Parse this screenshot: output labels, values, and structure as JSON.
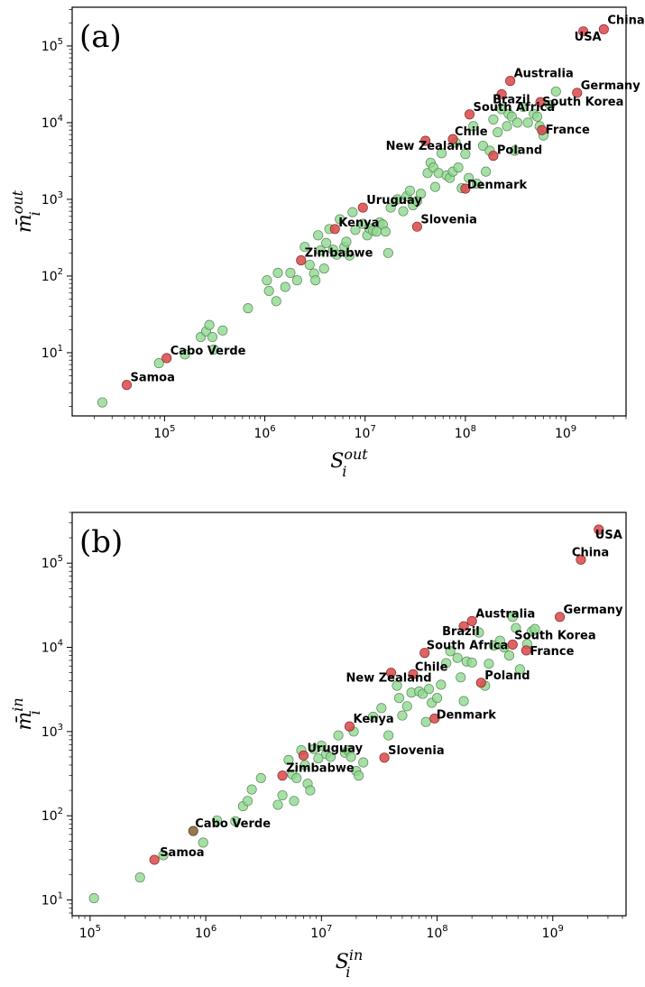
{
  "chart_data": [
    {
      "type": "scatter",
      "panel": "(a)",
      "xlabel": {
        "main": "S",
        "sub": "i",
        "sup": "out"
      },
      "ylabel": {
        "main": "m̄",
        "sub": "i",
        "sup": "out"
      },
      "xscale": "log",
      "yscale": "log",
      "xlim": [
        12000,
        4000000000
      ],
      "ylim": [
        1.5,
        320000
      ],
      "xticks": [
        {
          "value": 100000,
          "base": "10",
          "exp": "5"
        },
        {
          "value": 1000000,
          "base": "10",
          "exp": "6"
        },
        {
          "value": 10000000,
          "base": "10",
          "exp": "7"
        },
        {
          "value": 100000000,
          "base": "10",
          "exp": "8"
        },
        {
          "value": 1000000000,
          "base": "10",
          "exp": "9"
        }
      ],
      "yticks": [
        {
          "value": 10,
          "base": "10",
          "exp": "1"
        },
        {
          "value": 100,
          "base": "10",
          "exp": "2"
        },
        {
          "value": 1000,
          "base": "10",
          "exp": "3"
        },
        {
          "value": 10000,
          "base": "10",
          "exp": "4"
        },
        {
          "value": 100000,
          "base": "10",
          "exp": "5"
        }
      ],
      "highlighted": [
        {
          "name": "China",
          "x": 2400000000,
          "y": 165000,
          "color": "red",
          "dx": 4,
          "dy": -6
        },
        {
          "name": "USA",
          "x": 1500000000,
          "y": 155000,
          "color": "red",
          "dx": -10,
          "dy": 10
        },
        {
          "name": "Australia",
          "x": 280000000,
          "y": 35000,
          "color": "red",
          "dx": 4,
          "dy": -4
        },
        {
          "name": "Germany",
          "x": 1300000000,
          "y": 24500,
          "color": "red",
          "dx": 4,
          "dy": -4
        },
        {
          "name": "Brazil",
          "x": 230000000,
          "y": 23500,
          "color": "red",
          "dx": -10,
          "dy": 10
        },
        {
          "name": "South Korea",
          "x": 560000000,
          "y": 18500,
          "color": "red",
          "dx": 2,
          "dy": 4
        },
        {
          "name": "South Africa",
          "x": 110000000,
          "y": 12800,
          "color": "red",
          "dx": 4,
          "dy": -4
        },
        {
          "name": "Chile",
          "x": 75000000,
          "y": 6100,
          "color": "red",
          "dx": 2,
          "dy": -4
        },
        {
          "name": "France",
          "x": 580000000,
          "y": 8000,
          "color": "red",
          "dx": 4,
          "dy": 4
        },
        {
          "name": "New Zealand",
          "x": 40000000,
          "y": 5800,
          "color": "red",
          "dx": -44,
          "dy": 10
        },
        {
          "name": "Poland",
          "x": 190000000,
          "y": 3700,
          "color": "red",
          "dx": 4,
          "dy": -2
        },
        {
          "name": "Denmark",
          "x": 100000000,
          "y": 1380,
          "color": "red",
          "dx": 2,
          "dy": 0
        },
        {
          "name": "Uruguay",
          "x": 9500000,
          "y": 780,
          "color": "red",
          "dx": 4,
          "dy": -4
        },
        {
          "name": "Kenya",
          "x": 5000000,
          "y": 410,
          "color": "red",
          "dx": 4,
          "dy": -3
        },
        {
          "name": "Slovenia",
          "x": 33000000,
          "y": 440,
          "color": "red",
          "dx": 4,
          "dy": -4
        },
        {
          "name": "Zimbabwe",
          "x": 2300000,
          "y": 160,
          "color": "red",
          "dx": 4,
          "dy": -4
        },
        {
          "name": "Cabo Verde",
          "x": 105000,
          "y": 8.5,
          "color": "red",
          "dx": 4,
          "dy": -4
        },
        {
          "name": "Samoa",
          "x": 42000,
          "y": 3.8,
          "color": "red",
          "dx": 4,
          "dy": -4
        }
      ],
      "points": [
        [
          24000,
          2.25
        ],
        [
          88000,
          7.3
        ],
        [
          160000,
          9.5
        ],
        [
          230000,
          16
        ],
        [
          260000,
          19
        ],
        [
          280000,
          23
        ],
        [
          300000,
          16
        ],
        [
          310000,
          11
        ],
        [
          380000,
          19.5
        ],
        [
          680000,
          38
        ],
        [
          1050000,
          88
        ],
        [
          1100000,
          64
        ],
        [
          1300000,
          47
        ],
        [
          1350000,
          110
        ],
        [
          1600000,
          72
        ],
        [
          1800000,
          110
        ],
        [
          2100000,
          88
        ],
        [
          2500000,
          240
        ],
        [
          2800000,
          140
        ],
        [
          3100000,
          108
        ],
        [
          3200000,
          88
        ],
        [
          3400000,
          340
        ],
        [
          3600000,
          215
        ],
        [
          3900000,
          125
        ],
        [
          4100000,
          270
        ],
        [
          4400000,
          410
        ],
        [
          4800000,
          220
        ],
        [
          5200000,
          190
        ],
        [
          5600000,
          550
        ],
        [
          6200000,
          240
        ],
        [
          6500000,
          280
        ],
        [
          7000000,
          185
        ],
        [
          7500000,
          680
        ],
        [
          8000000,
          400
        ],
        [
          9500000,
          480
        ],
        [
          10500000,
          340
        ],
        [
          11000000,
          420
        ],
        [
          12000000,
          390
        ],
        [
          13000000,
          380
        ],
        [
          14000000,
          500
        ],
        [
          15000000,
          470
        ],
        [
          16000000,
          380
        ],
        [
          17000000,
          200
        ],
        [
          18000000,
          780
        ],
        [
          21000000,
          1000
        ],
        [
          24000000,
          700
        ],
        [
          26000000,
          1100
        ],
        [
          28000000,
          1300
        ],
        [
          30000000,
          840
        ],
        [
          33000000,
          950
        ],
        [
          36000000,
          1180
        ],
        [
          42000000,
          2200
        ],
        [
          45000000,
          3000
        ],
        [
          48000000,
          2600
        ],
        [
          50000000,
          1450
        ],
        [
          54000000,
          2200
        ],
        [
          58000000,
          4000
        ],
        [
          65000000,
          2050
        ],
        [
          70000000,
          1900
        ],
        [
          75000000,
          2300
        ],
        [
          80000000,
          5500
        ],
        [
          85000000,
          2600
        ],
        [
          92000000,
          1400
        ],
        [
          100000000,
          3900
        ],
        [
          108000000,
          1900
        ],
        [
          120000000,
          9000
        ],
        [
          130000000,
          1600
        ],
        [
          150000000,
          5000
        ],
        [
          160000000,
          2300
        ],
        [
          175000000,
          4300
        ],
        [
          190000000,
          11000
        ],
        [
          210000000,
          7500
        ],
        [
          230000000,
          15000
        ],
        [
          260000000,
          9000
        ],
        [
          270000000,
          13000
        ],
        [
          290000000,
          12000
        ],
        [
          310000000,
          4300
        ],
        [
          330000000,
          10000
        ],
        [
          380000000,
          16000
        ],
        [
          420000000,
          10000
        ],
        [
          480000000,
          13000
        ],
        [
          520000000,
          12000
        ],
        [
          550000000,
          9000
        ],
        [
          600000000,
          6800
        ],
        [
          700000000,
          17000
        ],
        [
          800000000,
          25500
        ]
      ]
    },
    {
      "type": "scatter",
      "panel": "(b)",
      "xlabel": {
        "main": "S",
        "sub": "i",
        "sup": "in"
      },
      "ylabel": {
        "main": "m̄",
        "sub": "i",
        "sup": "in"
      },
      "xscale": "log",
      "yscale": "log",
      "xlim": [
        70000,
        4300000000
      ],
      "ylim": [
        6.5,
        400000
      ],
      "xticks": [
        {
          "value": 100000,
          "base": "10",
          "exp": "5"
        },
        {
          "value": 1000000,
          "base": "10",
          "exp": "6"
        },
        {
          "value": 10000000,
          "base": "10",
          "exp": "7"
        },
        {
          "value": 100000000,
          "base": "10",
          "exp": "8"
        },
        {
          "value": 1000000000,
          "base": "10",
          "exp": "9"
        }
      ],
      "yticks": [
        {
          "value": 10,
          "base": "10",
          "exp": "1"
        },
        {
          "value": 100,
          "base": "10",
          "exp": "2"
        },
        {
          "value": 1000,
          "base": "10",
          "exp": "3"
        },
        {
          "value": 10000,
          "base": "10",
          "exp": "4"
        },
        {
          "value": 100000,
          "base": "10",
          "exp": "5"
        }
      ],
      "highlighted": [
        {
          "name": "USA",
          "x": 2500000000,
          "y": 250000,
          "color": "red",
          "dx": -4,
          "dy": 10
        },
        {
          "name": "China",
          "x": 1750000000,
          "y": 110000,
          "color": "red",
          "dx": -10,
          "dy": -4
        },
        {
          "name": "Germany",
          "x": 1150000000,
          "y": 23000,
          "color": "red",
          "dx": 4,
          "dy": -4
        },
        {
          "name": "Australia",
          "x": 200000000,
          "y": 20500,
          "color": "red",
          "dx": 4,
          "dy": -4
        },
        {
          "name": "Brazil",
          "x": 170000000,
          "y": 17800,
          "color": "red",
          "dx": -24,
          "dy": 10
        },
        {
          "name": "South Korea",
          "x": 450000000,
          "y": 10800,
          "color": "red",
          "dx": 2,
          "dy": -6
        },
        {
          "name": "France",
          "x": 590000000,
          "y": 9200,
          "color": "red",
          "dx": 4,
          "dy": 5
        },
        {
          "name": "South Africa",
          "x": 78000000,
          "y": 8600,
          "color": "red",
          "dx": 2,
          "dy": -4
        },
        {
          "name": "Chile",
          "x": 62000000,
          "y": 4800,
          "color": "red",
          "dx": 2,
          "dy": -4
        },
        {
          "name": "New Zealand",
          "x": 40000000,
          "y": 5000,
          "color": "red",
          "dx": -50,
          "dy": 10
        },
        {
          "name": "Poland",
          "x": 240000000,
          "y": 3800,
          "color": "red",
          "dx": 4,
          "dy": -4
        },
        {
          "name": "Denmark",
          "x": 95000000,
          "y": 1430,
          "color": "red",
          "dx": 2,
          "dy": 0
        },
        {
          "name": "Kenya",
          "x": 17500000,
          "y": 1150,
          "color": "red",
          "dx": 4,
          "dy": -4
        },
        {
          "name": "Uruguay",
          "x": 7000000,
          "y": 520,
          "color": "red",
          "dx": 4,
          "dy": -4
        },
        {
          "name": "Slovenia",
          "x": 35000000,
          "y": 490,
          "color": "red",
          "dx": 4,
          "dy": -4
        },
        {
          "name": "Zimbabwe",
          "x": 4600000,
          "y": 300,
          "color": "red",
          "dx": 4,
          "dy": -4
        },
        {
          "name": "Cabo Verde",
          "x": 780000,
          "y": 66,
          "color": "brown",
          "dx": 2,
          "dy": -4
        },
        {
          "name": "Samoa",
          "x": 360000,
          "y": 30,
          "color": "red",
          "dx": 6,
          "dy": -4
        }
      ],
      "points": [
        [
          108000,
          10.5
        ],
        [
          270000,
          18.5
        ],
        [
          430000,
          34
        ],
        [
          950000,
          48
        ],
        [
          1250000,
          88
        ],
        [
          1800000,
          86
        ],
        [
          2100000,
          130
        ],
        [
          2300000,
          150
        ],
        [
          2500000,
          205
        ],
        [
          3000000,
          280
        ],
        [
          4200000,
          135
        ],
        [
          4600000,
          175
        ],
        [
          5200000,
          460
        ],
        [
          5600000,
          310
        ],
        [
          5800000,
          150
        ],
        [
          6100000,
          280
        ],
        [
          6700000,
          600
        ],
        [
          7200000,
          400
        ],
        [
          7600000,
          240
        ],
        [
          8000000,
          200
        ],
        [
          8600000,
          620
        ],
        [
          9400000,
          480
        ],
        [
          10000000,
          680
        ],
        [
          11000000,
          540
        ],
        [
          12000000,
          500
        ],
        [
          14000000,
          900
        ],
        [
          16000000,
          560
        ],
        [
          17000000,
          600
        ],
        [
          18000000,
          500
        ],
        [
          19000000,
          1000
        ],
        [
          20000000,
          340
        ],
        [
          21000000,
          300
        ],
        [
          23000000,
          430
        ],
        [
          28000000,
          1500
        ],
        [
          33000000,
          1900
        ],
        [
          38000000,
          900
        ],
        [
          45000000,
          3500
        ],
        [
          47000000,
          2500
        ],
        [
          50000000,
          1550
        ],
        [
          55000000,
          2000
        ],
        [
          60000000,
          2900
        ],
        [
          70000000,
          3000
        ],
        [
          75000000,
          2800
        ],
        [
          80000000,
          1300
        ],
        [
          85000000,
          3200
        ],
        [
          90000000,
          2200
        ],
        [
          100000000,
          2500
        ],
        [
          108000000,
          3600
        ],
        [
          120000000,
          6500
        ],
        [
          130000000,
          9000
        ],
        [
          150000000,
          7500
        ],
        [
          160000000,
          4400
        ],
        [
          170000000,
          2300
        ],
        [
          180000000,
          6800
        ],
        [
          200000000,
          6600
        ],
        [
          230000000,
          15000
        ],
        [
          260000000,
          3500
        ],
        [
          280000000,
          6400
        ],
        [
          310000000,
          10500
        ],
        [
          350000000,
          12000
        ],
        [
          380000000,
          10000
        ],
        [
          420000000,
          8000
        ],
        [
          450000000,
          23000
        ],
        [
          480000000,
          17000
        ],
        [
          520000000,
          5500
        ],
        [
          600000000,
          11000
        ],
        [
          660000000,
          15500
        ],
        [
          700000000,
          16500
        ]
      ]
    }
  ]
}
